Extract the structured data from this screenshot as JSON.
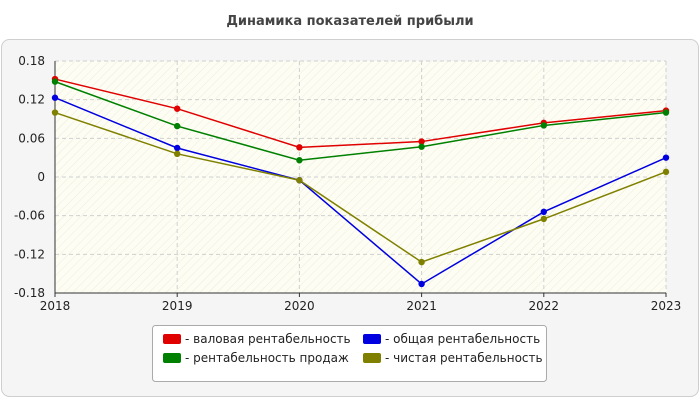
{
  "chart_data": {
    "type": "line",
    "title": "Динамика показателей прибыли",
    "xlabel": "",
    "ylabel": "",
    "categories": [
      "2018",
      "2019",
      "2020",
      "2021",
      "2022",
      "2023"
    ],
    "ylim": [
      -0.18,
      0.18
    ],
    "yticks": [
      {
        "value": 0.18,
        "label": "0.18"
      },
      {
        "value": 0.12,
        "label": "0.12"
      },
      {
        "value": 0.06,
        "label": "0.06"
      },
      {
        "value": 0,
        "label": "0"
      },
      {
        "value": -0.06,
        "label": "-0.06"
      },
      {
        "value": -0.12,
        "label": "-0.12"
      },
      {
        "value": -0.18,
        "label": "-0.18"
      }
    ],
    "grid": true,
    "legend_position": "bottom-center",
    "series": [
      {
        "name": "- валовая рентабельность",
        "color": "#e00000",
        "values": [
          0.152,
          0.106,
          0.046,
          0.055,
          0.084,
          0.103
        ]
      },
      {
        "name": "- рентабельность продаж",
        "color": "#008000",
        "values": [
          0.148,
          0.079,
          0.026,
          0.047,
          0.08,
          0.1
        ]
      },
      {
        "name": "- общая рентабельность",
        "color": "#0000e0",
        "values": [
          0.123,
          0.045,
          -0.005,
          -0.166,
          -0.054,
          0.03
        ]
      },
      {
        "name": "- чистая рентабельность",
        "color": "#808000",
        "values": [
          0.1,
          0.036,
          -0.005,
          -0.132,
          -0.065,
          0.008
        ]
      }
    ]
  }
}
